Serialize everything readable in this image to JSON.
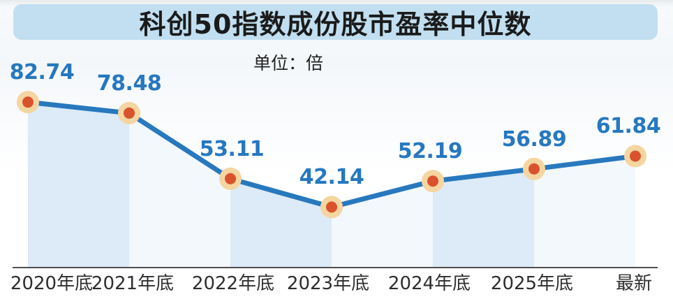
{
  "chart_data": {
    "type": "line",
    "title": "科创50指数成份股市盈率中位数",
    "unit_label": "单位：倍",
    "categories": [
      "2020年底",
      "2021年底",
      "2022年底",
      "2023年底",
      "2024年底",
      "2025年底",
      "最新"
    ],
    "values": [
      82.74,
      78.48,
      53.11,
      42.14,
      52.19,
      56.89,
      61.84
    ],
    "ylim": [
      19,
      105
    ],
    "grid": false,
    "legend": "none",
    "area_fill": "alternating-vertical-slices-under-line"
  },
  "colors": {
    "accent_blue": "#2878be",
    "value_text_blue": "#2678c0",
    "marker_inner": "#d8532d",
    "marker_halo": "#f5d5a0",
    "slice_dark": "#dcebf7",
    "slice_light": "#f3f8fc",
    "title_bar_bg": "#c1dff0",
    "title_text": "#1b1b1b",
    "axis_line": "#4f4f4f",
    "axis_label": "#2e2e2e"
  }
}
